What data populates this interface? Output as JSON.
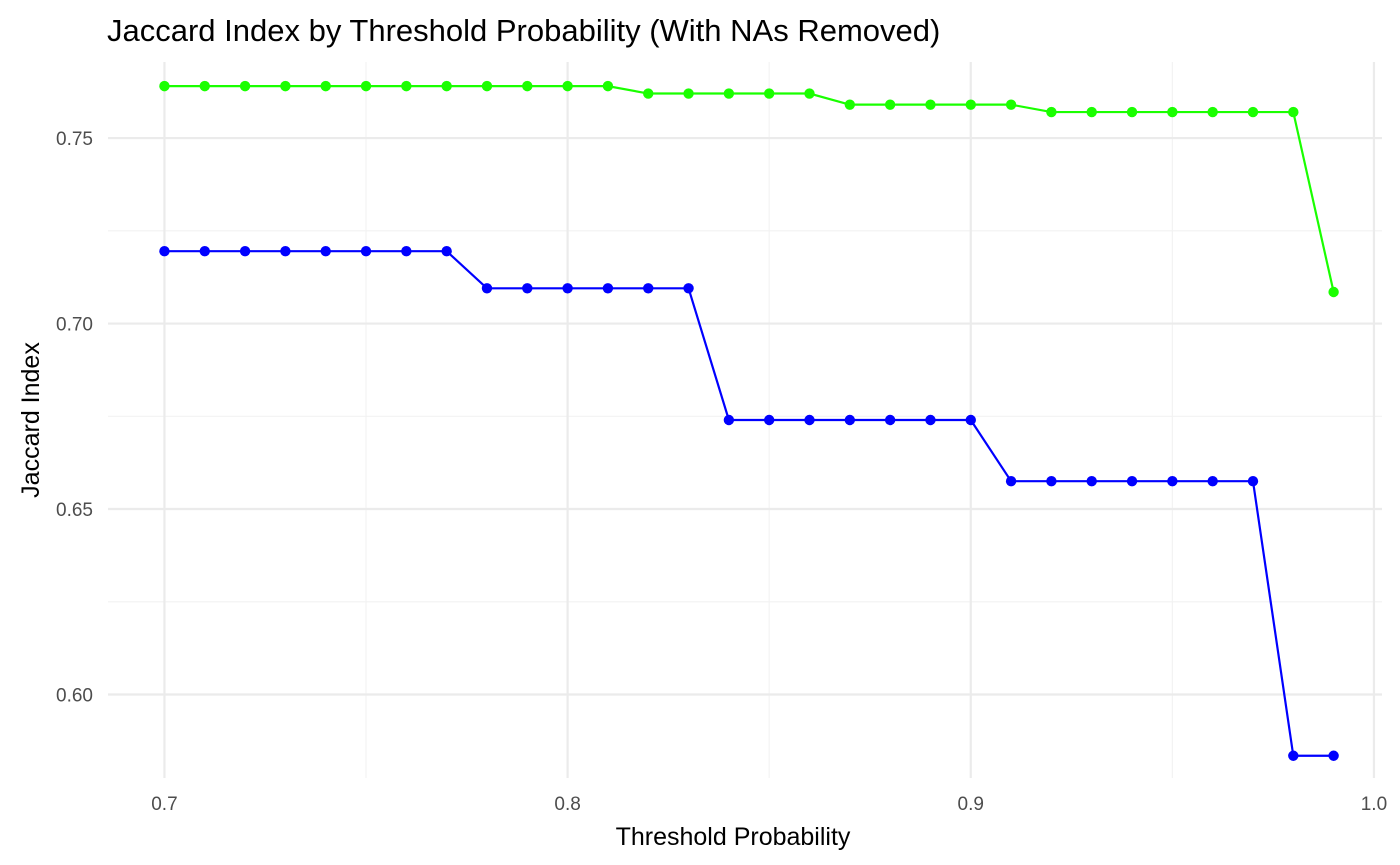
{
  "chart_data": {
    "type": "line",
    "title": "Jaccard Index by Threshold Probability (With NAs Removed)",
    "xlabel": "Threshold Probability",
    "ylabel": "Jaccard Index",
    "xlim": [
      0.686,
      1.002
    ],
    "ylim": [
      0.5775,
      0.7705
    ],
    "x_ticks": [
      0.7,
      0.8,
      0.9,
      1.0
    ],
    "x_tick_labels": [
      "0.7",
      "0.8",
      "0.9",
      "1.0"
    ],
    "y_ticks": [
      0.6,
      0.65,
      0.7,
      0.75
    ],
    "y_tick_labels": [
      "0.60",
      "0.65",
      "0.70",
      "0.75"
    ],
    "x_minor_ticks": [
      0.75,
      0.85,
      0.95
    ],
    "y_minor_ticks": [
      0.625,
      0.675,
      0.725
    ],
    "grid": true,
    "x": [
      0.7,
      0.71,
      0.72,
      0.73,
      0.74,
      0.75,
      0.76,
      0.77,
      0.78,
      0.79,
      0.8,
      0.81,
      0.82,
      0.83,
      0.84,
      0.85,
      0.86,
      0.87,
      0.88,
      0.89,
      0.9,
      0.91,
      0.92,
      0.93,
      0.94,
      0.95,
      0.96,
      0.97,
      0.98,
      0.99
    ],
    "series": [
      {
        "color": "#1aff00",
        "values": [
          0.764,
          0.764,
          0.764,
          0.764,
          0.764,
          0.764,
          0.764,
          0.764,
          0.764,
          0.764,
          0.764,
          0.764,
          0.762,
          0.762,
          0.762,
          0.762,
          0.762,
          0.759,
          0.759,
          0.759,
          0.759,
          0.759,
          0.757,
          0.757,
          0.757,
          0.757,
          0.757,
          0.757,
          0.757,
          0.7085
        ]
      },
      {
        "color": "#0000ff",
        "values": [
          0.7195,
          0.7195,
          0.7195,
          0.7195,
          0.7195,
          0.7195,
          0.7195,
          0.7195,
          0.7095,
          0.7095,
          0.7095,
          0.7095,
          0.7095,
          0.7095,
          0.674,
          0.674,
          0.674,
          0.674,
          0.674,
          0.674,
          0.674,
          0.6575,
          0.6575,
          0.6575,
          0.6575,
          0.6575,
          0.6575,
          0.6575,
          0.5835,
          0.5835
        ]
      }
    ]
  }
}
